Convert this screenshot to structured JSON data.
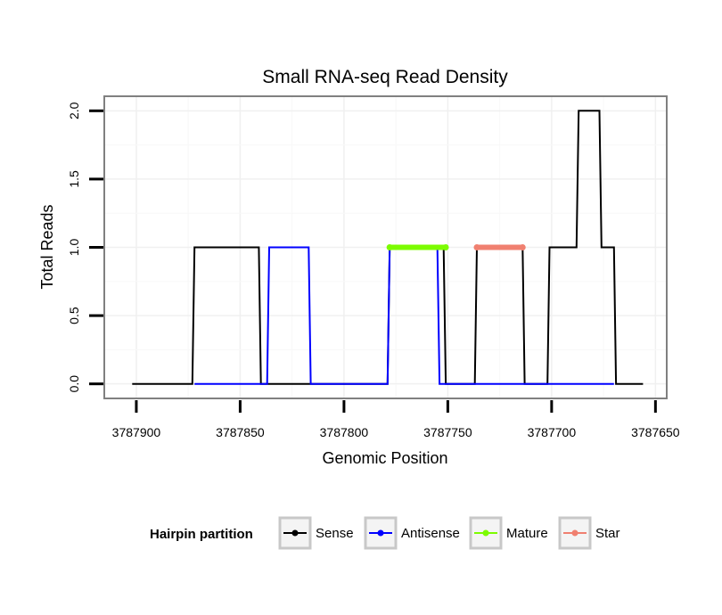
{
  "chart_data": {
    "type": "line",
    "title": "Small RNA-seq Read Density",
    "xlabel": "Genomic Position",
    "ylabel": "Total Reads",
    "x_reversed": true,
    "xlim": [
      3787915,
      3787645
    ],
    "ylim": [
      -0.1,
      2.1
    ],
    "x_ticks": [
      3787900,
      3787850,
      3787800,
      3787750,
      3787700,
      3787650
    ],
    "x_tick_labels": [
      "3787900",
      "3787850",
      "3787800",
      "3787750",
      "3787700",
      "3787650"
    ],
    "y_ticks": [
      0.0,
      0.5,
      1.0,
      1.5,
      2.0
    ],
    "y_tick_labels": [
      "0.0",
      "0.5",
      "1.0",
      "1.5",
      "2.0"
    ],
    "legend": {
      "title": "Hairpin partition",
      "position": "bottom"
    },
    "series": [
      {
        "name": "Sense",
        "color": "#000000",
        "x": [
          3787902,
          3787873,
          3787872,
          3787841,
          3787840,
          3787779,
          3787778,
          3787752,
          3787751,
          3787737,
          3787736,
          3787714,
          3787713,
          3787702,
          3787701,
          3787688,
          3787687,
          3787677,
          3787676,
          3787670,
          3787669,
          3787656
        ],
        "y": [
          0,
          0,
          1,
          1,
          0,
          0,
          1,
          1,
          0,
          0,
          1,
          1,
          0,
          0,
          1,
          1,
          2,
          2,
          1,
          1,
          0,
          0
        ]
      },
      {
        "name": "Antisense",
        "color": "#0000ff",
        "x": [
          3787872,
          3787837,
          3787836,
          3787817,
          3787816,
          3787779,
          3787778,
          3787755,
          3787754,
          3787737,
          3787736,
          3787670
        ],
        "y": [
          0,
          0,
          1,
          1,
          0,
          0,
          1,
          1,
          0,
          0,
          0,
          0
        ]
      },
      {
        "name": "Mature",
        "color": "#7cfc00",
        "x": [
          3787778,
          3787751
        ],
        "y": [
          1,
          1
        ]
      },
      {
        "name": "Star",
        "color": "#f08070",
        "x": [
          3787736,
          3787714
        ],
        "y": [
          1,
          1
        ]
      }
    ]
  }
}
